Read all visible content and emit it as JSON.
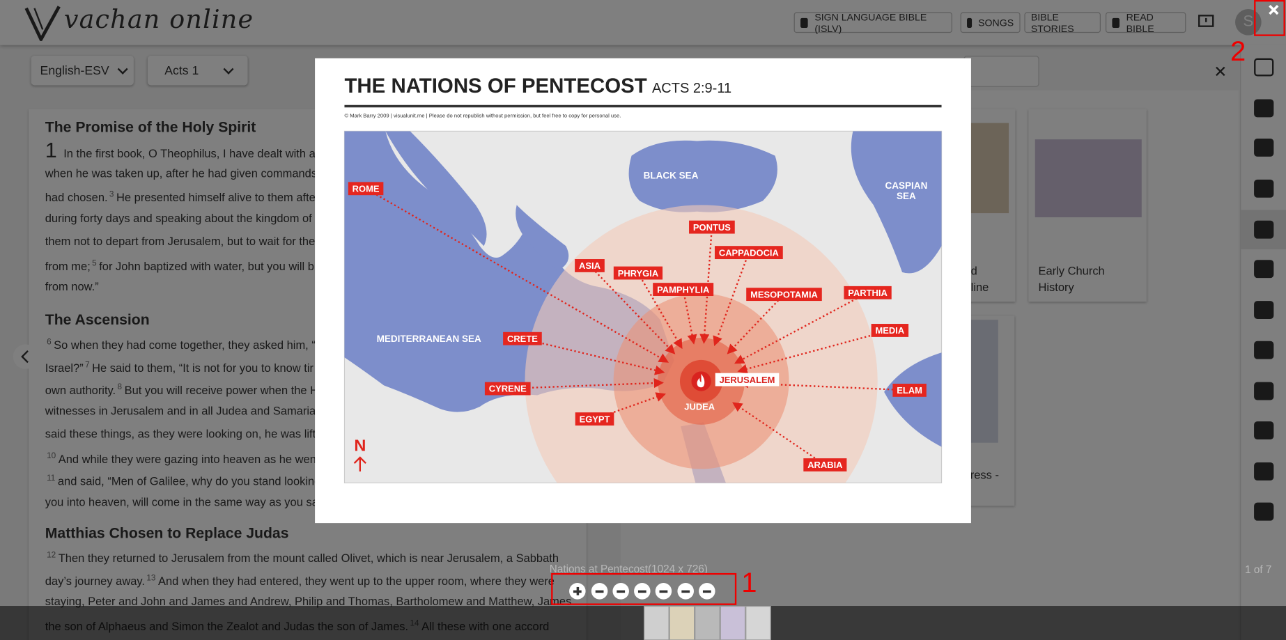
{
  "header": {
    "logo": "vachan online",
    "nav": [
      "SIGN LANGUAGE BIBLE (ISLV)",
      "SONGS",
      "BIBLE STORIES",
      "READ BIBLE"
    ],
    "avatar": "S"
  },
  "toolbar": {
    "version": "English-ESV",
    "book": "Acts 1"
  },
  "passage": {
    "sections": [
      {
        "heading": "The Promise of the Holy Spirit",
        "chapter": "1",
        "lines": [
          [
            "In the first book, O Theophilus, I have dealt with all"
          ],
          [
            "when he was taken up, after he had given commands"
          ],
          [
            "had chosen.",
            {
              "v": "3"
            },
            "He presented himself alive to them afte"
          ],
          [
            "during forty days and speaking about the kingdom of"
          ],
          [
            "them not to depart from Jerusalem, but to wait for the"
          ],
          [
            "from me;",
            {
              "v": "5"
            },
            "for John baptized with water, but you will b"
          ],
          [
            "from now.”"
          ]
        ]
      },
      {
        "heading": "The Ascension",
        "lines": [
          [
            {
              "v": "6"
            },
            "So when they had come together, they asked him, “L"
          ],
          [
            "Israel?”",
            {
              "v": "7"
            },
            "He said to them, “It is not for you to know tir"
          ],
          [
            "own authority.",
            {
              "v": "8"
            },
            "But you will receive power when the H"
          ],
          [
            "witnesses in Jerusalem and in all Judea and Samaria,"
          ],
          [
            "said these things, as they were looking on, he was lifte"
          ],
          [
            {
              "v": "10"
            },
            "And while they were gazing into heaven as he went"
          ],
          [
            {
              "v": "11"
            },
            "and said, “Men of Galilee, why do you stand looking"
          ],
          [
            "you into heaven, will come in the same way as you sav"
          ]
        ]
      },
      {
        "heading": "Matthias Chosen to Replace Judas",
        "lines": [
          [
            {
              "v": "12"
            },
            "Then they returned to Jerusalem from the mount called Olivet, which is near Jerusalem, a Sabbath"
          ],
          [
            "day’s journey away.",
            {
              "v": "13"
            },
            "And when they had entered, they went up to the upper room, where they were"
          ],
          [
            "staying, Peter and John and James and Andrew, Philip and Thomas, Bartholomew and Matthew, James"
          ],
          [
            "the son of Alphaeus and Simon the Zealot and Judas the son of James.",
            {
              "v": "14"
            },
            "All these with one accord"
          ]
        ]
      }
    ]
  },
  "panel": {
    "cards": [
      [
        "nd",
        "eline"
      ],
      [
        "Early Church",
        "History"
      ],
      [
        "ress -"
      ]
    ]
  },
  "viewer": {
    "image": {
      "title": "THE NATIONS OF PENTECOST",
      "reference": "ACTS 2:9-11",
      "credit": "© Mark Barry 2009  |  visualunit.me  |  Please do not republish without permission, but feel free to copy for personal use.",
      "seas": [
        [
          "BLACK SEA"
        ],
        [
          "CASPIAN",
          "SEA"
        ],
        [
          "MEDITERRANEAN SEA"
        ]
      ],
      "regions": [
        "ROME",
        "PONTUS",
        "CAPPADOCIA",
        "ASIA",
        "PHRYGIA",
        "PAMPHYLIA",
        "MESOPOTAMIA",
        "PARTHIA",
        "CRETE",
        "MEDIA",
        "CYRENE",
        "JERUSALEM",
        "ELAM",
        "JUDEA",
        "EGYPT",
        "ARABIA"
      ],
      "compass": "N"
    },
    "caption": "Nations at Pentecost(1024 x 726)",
    "counter": "1 of 7"
  },
  "annotations": [
    "1",
    "2"
  ]
}
